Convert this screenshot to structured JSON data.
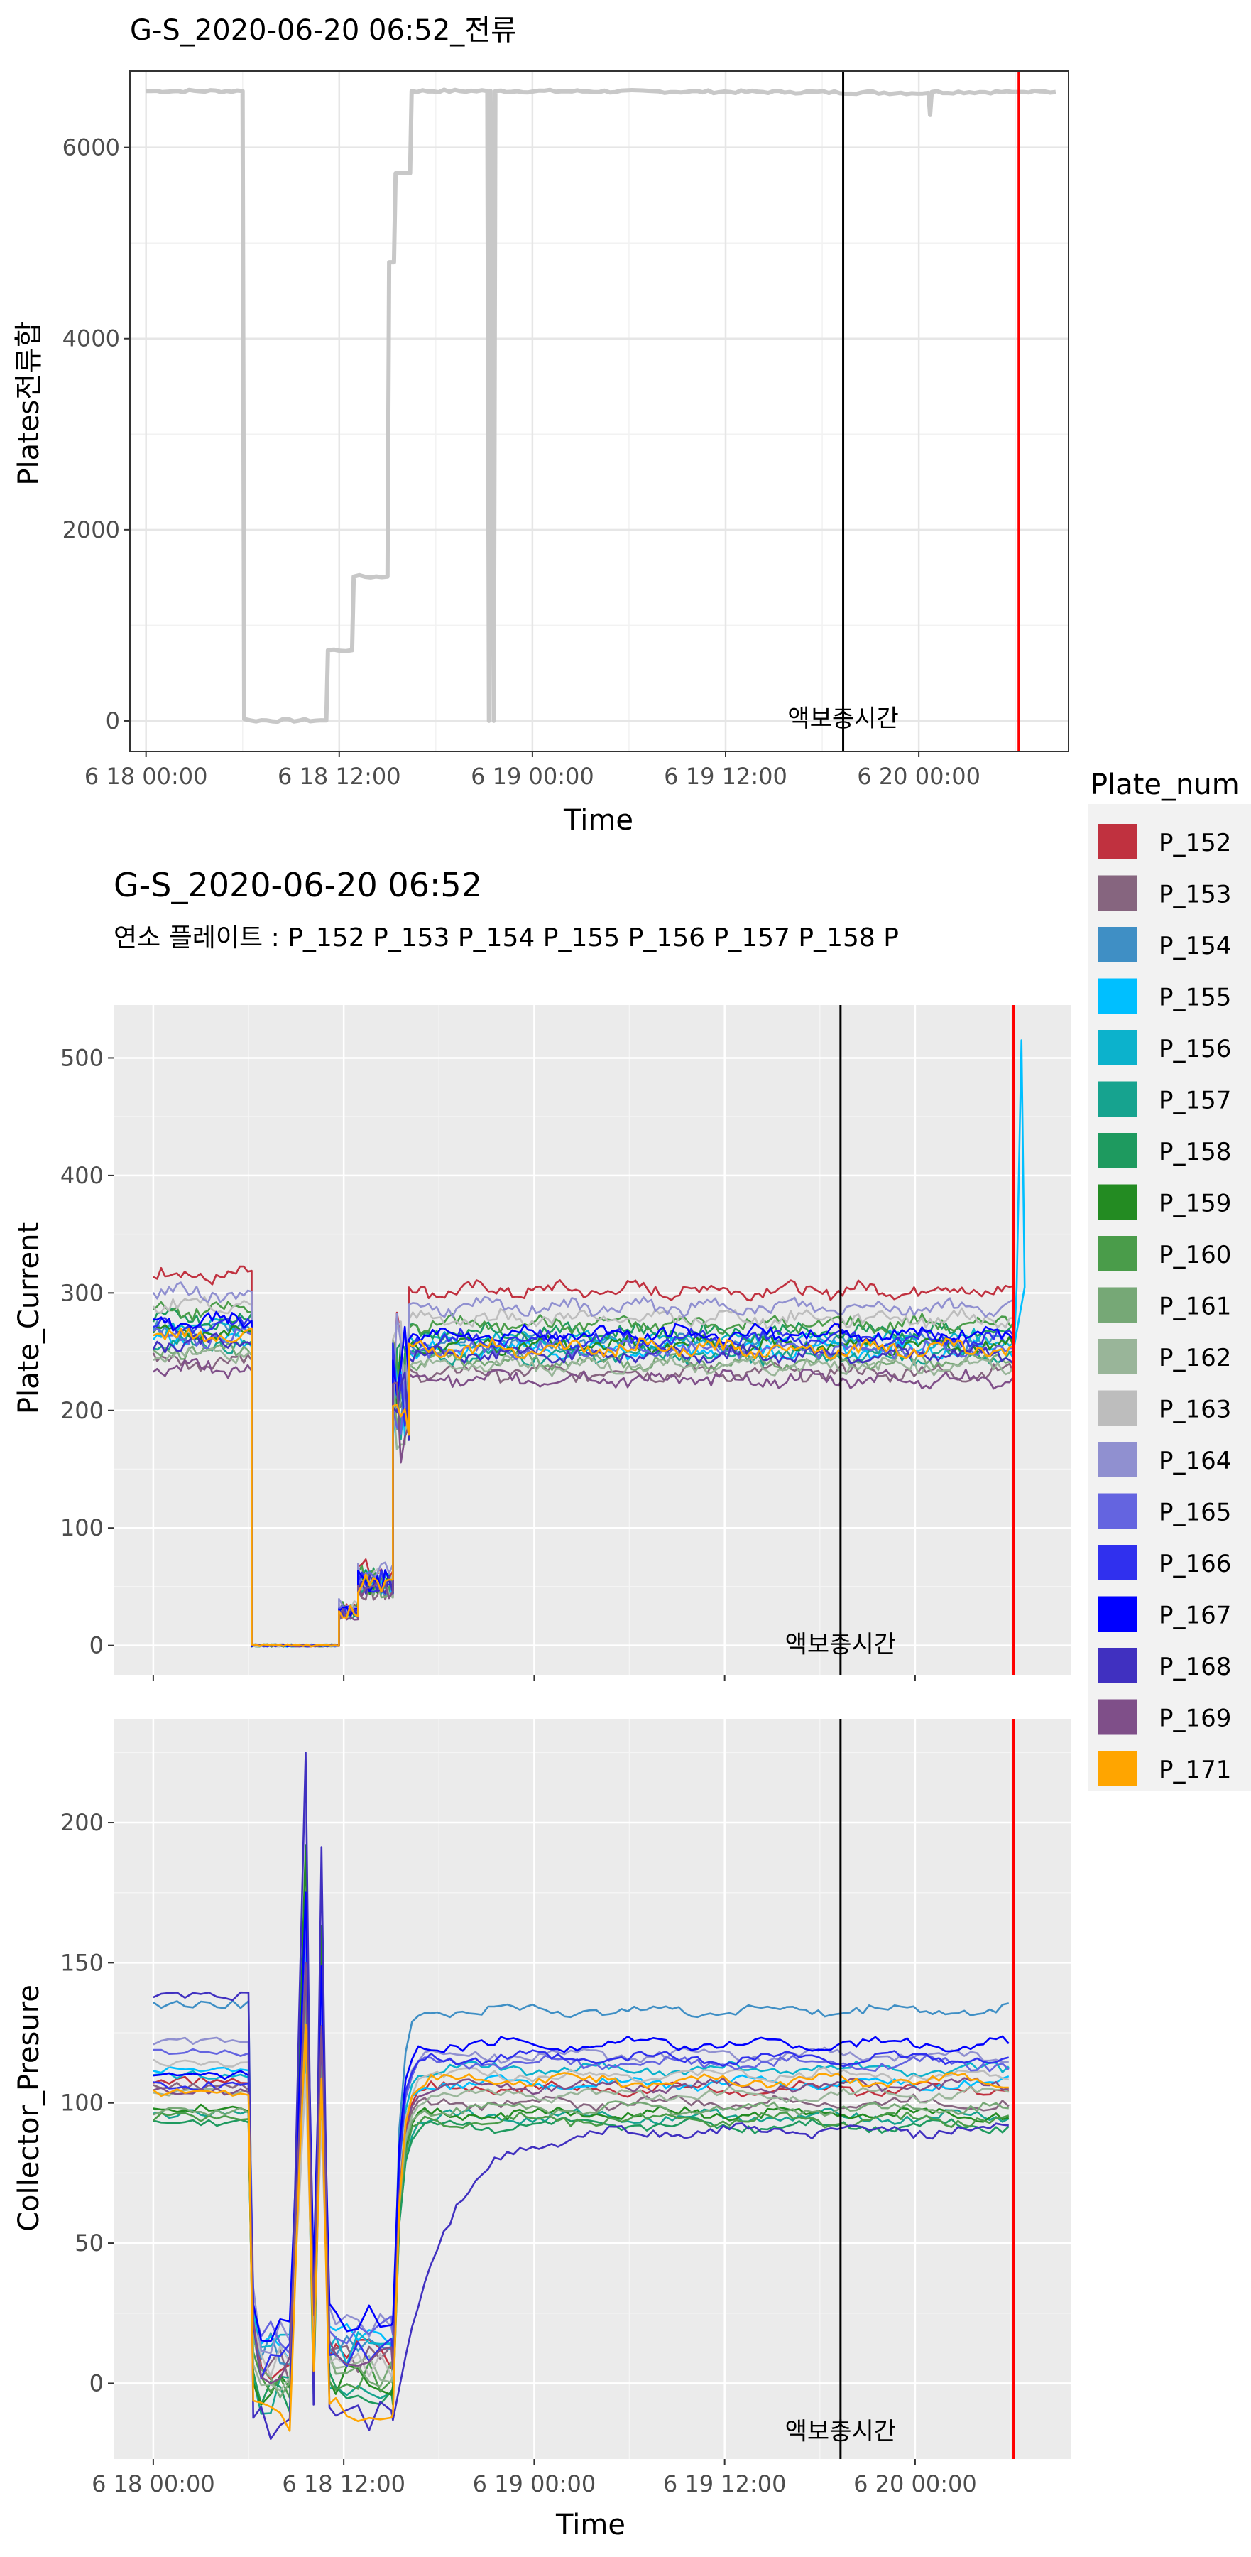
{
  "chart_data": [
    {
      "type": "line",
      "title": "G-S_2020-06-20 06:52_전류",
      "xlabel": "Time",
      "ylabel": "Plates전류합",
      "x_ticks": [
        "6 18 00:00",
        "6 18 12:00",
        "6 19 00:00",
        "6 19 12:00",
        "6 20 00:00"
      ],
      "y_ticks": [
        "0",
        "2000",
        "4000",
        "6000"
      ],
      "xlim_hours": [
        -1,
        57.3
      ],
      "ylim": [
        -320,
        6800
      ],
      "grid": true,
      "theme": "white-panel",
      "series": [
        {
          "color": "#c8c8c8",
          "points": [
            [
              0,
              6590
            ],
            [
              6,
              6590
            ],
            [
              6,
              6580
            ],
            [
              6.1,
              20
            ],
            [
              6.5,
              5
            ],
            [
              11.2,
              5
            ],
            [
              11.3,
              740
            ],
            [
              12.8,
              740
            ],
            [
              12.9,
              1510
            ],
            [
              15,
              1510
            ],
            [
              15.1,
              4800
            ],
            [
              15.4,
              4800
            ],
            [
              15.5,
              5730
            ],
            [
              16.4,
              5730
            ],
            [
              16.5,
              6590
            ],
            [
              21.2,
              6590
            ],
            [
              21.3,
              0
            ],
            [
              21.4,
              6590
            ],
            [
              21.6,
              0
            ],
            [
              21.7,
              6590
            ],
            [
              40,
              6580
            ],
            [
              48.6,
              6570
            ],
            [
              48.7,
              6340
            ],
            [
              48.8,
              6580
            ],
            [
              53.8,
              6580
            ],
            [
              54.5,
              6580
            ],
            [
              56.5,
              6580
            ]
          ]
        }
      ],
      "vlines": [
        {
          "x_hours": 43.3,
          "color": "#000000"
        },
        {
          "x_hours": 54.2,
          "color": "#ff0000"
        }
      ],
      "annotation": {
        "text": "액보충시간",
        "x_hours": 43.3,
        "y": 0
      }
    },
    {
      "type": "line",
      "title": "G-S_2020-06-20 06:52",
      "subtitle": "연소 플레이트 :  P_152 P_153 P_154 P_155 P_156 P_157 P_158 P",
      "xlabel": "",
      "ylabel": "Plate_Current",
      "y_ticks": [
        "0",
        "100",
        "200",
        "300",
        "400",
        "500"
      ],
      "xlim_hours": [
        -2.5,
        57.8
      ],
      "ylim": [
        -25,
        545
      ],
      "grid": true,
      "theme": "grey-panel",
      "segments_hours": [
        [
          0,
          6.2
        ],
        [
          6.2,
          11.7
        ],
        [
          11.7,
          12.9
        ],
        [
          12.9,
          15.1
        ],
        [
          15.1,
          16.1
        ],
        [
          16.1,
          54.2
        ]
      ],
      "level_multipliers": [
        1.0,
        0.0,
        0.11,
        0.2,
        0.82,
        0.96
      ],
      "series": [
        {
          "name": "P_152",
          "base": 315
        },
        {
          "name": "P_153",
          "base": 242
        },
        {
          "name": "P_154",
          "base": 268
        },
        {
          "name": "P_155",
          "base": 262
        },
        {
          "name": "P_156",
          "base": 272
        },
        {
          "name": "P_157",
          "base": 257
        },
        {
          "name": "P_158",
          "base": 278
        },
        {
          "name": "P_159",
          "base": 266
        },
        {
          "name": "P_160",
          "base": 285
        },
        {
          "name": "P_161",
          "base": 252
        },
        {
          "name": "P_162",
          "base": 248
        },
        {
          "name": "P_163",
          "base": 290
        },
        {
          "name": "P_164",
          "base": 300
        },
        {
          "name": "P_165",
          "base": 262
        },
        {
          "name": "P_166",
          "base": 272
        },
        {
          "name": "P_167",
          "base": 276
        },
        {
          "name": "P_168",
          "base": 258
        },
        {
          "name": "P_169",
          "base": 236
        },
        {
          "name": "P_171",
          "base": 263
        }
      ],
      "spike": {
        "series": "P_155",
        "x_hours": 54.7,
        "peak": 515,
        "side": 305
      },
      "vlines": [
        {
          "x_hours": 43.3,
          "color": "#000000"
        },
        {
          "x_hours": 54.2,
          "color": "#ff0000"
        }
      ],
      "annotation": {
        "text": "액보충시간",
        "x_hours": 43.3,
        "y": 0
      }
    },
    {
      "type": "line",
      "xlabel": "Time",
      "ylabel": "Collector_Presure",
      "x_ticks": [
        "6 18 00:00",
        "6 18 12:00",
        "6 19 00:00",
        "6 19 12:00",
        "6 20 00:00"
      ],
      "y_ticks": [
        "0",
        "50",
        "100",
        "150",
        "200"
      ],
      "xlim_hours": [
        -2.5,
        57.8
      ],
      "ylim": [
        -27,
        237
      ],
      "grid": true,
      "theme": "grey-panel",
      "series": [
        {
          "name": "P_152",
          "pre": 108,
          "low": 8,
          "peak": 150,
          "post": 105
        },
        {
          "name": "P_153",
          "pre": 106,
          "low": 6,
          "peak": 140,
          "post": 100
        },
        {
          "name": "P_154",
          "pre": 135,
          "low": 12,
          "peak": 160,
          "post": 133
        },
        {
          "name": "P_155",
          "pre": 112,
          "low": 14,
          "peak": 120,
          "post": 107
        },
        {
          "name": "P_156",
          "pre": 110,
          "low": 10,
          "peak": 155,
          "post": 112
        },
        {
          "name": "P_157",
          "pre": 96,
          "low": -4,
          "peak": 130,
          "post": 95
        },
        {
          "name": "P_158",
          "pre": 93,
          "low": -6,
          "peak": 135,
          "post": 92
        },
        {
          "name": "P_159",
          "pre": 98,
          "low": -2,
          "peak": 192,
          "post": 96
        },
        {
          "name": "P_160",
          "pre": 95,
          "low": 0,
          "peak": 145,
          "post": 94
        },
        {
          "name": "P_161",
          "pre": 97,
          "low": 2,
          "peak": 138,
          "post": 98
        },
        {
          "name": "P_162",
          "pre": 104,
          "low": 4,
          "peak": 125,
          "post": 103
        },
        {
          "name": "P_163",
          "pre": 114,
          "low": 6,
          "peak": 110,
          "post": 110
        },
        {
          "name": "P_164",
          "pre": 122,
          "low": 18,
          "peak": 165,
          "post": 117
        },
        {
          "name": "P_165",
          "pre": 118,
          "low": 16,
          "peak": 168,
          "post": 114
        },
        {
          "name": "P_166",
          "pre": 106,
          "low": 8,
          "peak": 150,
          "post": 116
        },
        {
          "name": "P_167",
          "pre": 110,
          "low": 20,
          "peak": 175,
          "post": 121
        },
        {
          "name": "P_168",
          "pre": 138,
          "low": -14,
          "peak": 225,
          "post": 90
        },
        {
          "name": "P_169",
          "pre": 104,
          "low": 6,
          "peak": 150,
          "post": 106
        },
        {
          "name": "P_171",
          "pre": 104,
          "low": -10,
          "peak": 128,
          "post": 108
        }
      ],
      "vlines": [
        {
          "x_hours": 43.3,
          "color": "#000000"
        },
        {
          "x_hours": 54.2,
          "color": "#ff0000"
        }
      ],
      "annotation": {
        "text": "액보충시간",
        "x_hours": 43.3,
        "y": -17
      }
    }
  ],
  "legend": {
    "title": "Plate_num",
    "placement": "right",
    "items": [
      {
        "label": "P_152",
        "color": "#c0313f"
      },
      {
        "label": "P_153",
        "color": "#86657f"
      },
      {
        "label": "P_154",
        "color": "#3f8fc5"
      },
      {
        "label": "P_155",
        "color": "#00bfff"
      },
      {
        "label": "P_156",
        "color": "#0cb2cc"
      },
      {
        "label": "P_157",
        "color": "#16a38f"
      },
      {
        "label": "P_158",
        "color": "#1e9a5f"
      },
      {
        "label": "P_159",
        "color": "#238b22"
      },
      {
        "label": "P_160",
        "color": "#4a9c4a"
      },
      {
        "label": "P_161",
        "color": "#76a876"
      },
      {
        "label": "P_162",
        "color": "#99b599"
      },
      {
        "label": "P_163",
        "color": "#bdbdbd"
      },
      {
        "label": "P_164",
        "color": "#9090d0"
      },
      {
        "label": "P_165",
        "color": "#6464e0"
      },
      {
        "label": "P_166",
        "color": "#3030ee"
      },
      {
        "label": "P_167",
        "color": "#0000ff"
      },
      {
        "label": "P_168",
        "color": "#4030c0"
      },
      {
        "label": "P_169",
        "color": "#7f4f89"
      },
      {
        "label": "P_171",
        "color": "#ffa500"
      }
    ]
  }
}
